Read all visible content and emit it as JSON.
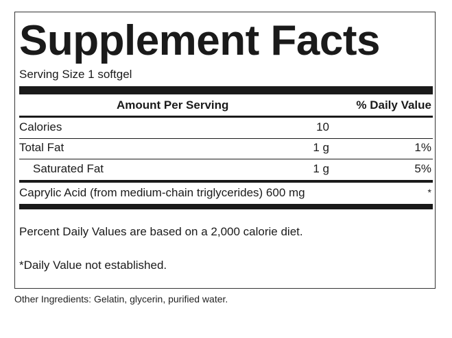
{
  "title": "Supplement Facts",
  "serving_size": "Serving Size 1 softgel",
  "header": {
    "amount_per_serving": "Amount Per Serving",
    "daily_value": "% Daily Value"
  },
  "rows": [
    {
      "label": "Calories",
      "amount": "10",
      "dv": ""
    },
    {
      "label": "Total Fat",
      "amount": "1 g",
      "dv": "1%"
    },
    {
      "label": "Saturated Fat",
      "amount": "1 g",
      "dv": "5%"
    },
    {
      "label": "Caprylic Acid (from medium-chain triglycerides) 600 mg",
      "amount": "",
      "dv": "*"
    }
  ],
  "footnotes": {
    "percent_dv": "Percent Daily Values are based on a 2,000 calorie diet.",
    "not_established": "*Daily Value not established."
  },
  "other_ingredients": "Other Ingredients: Gelatin, glycerin, purified water."
}
